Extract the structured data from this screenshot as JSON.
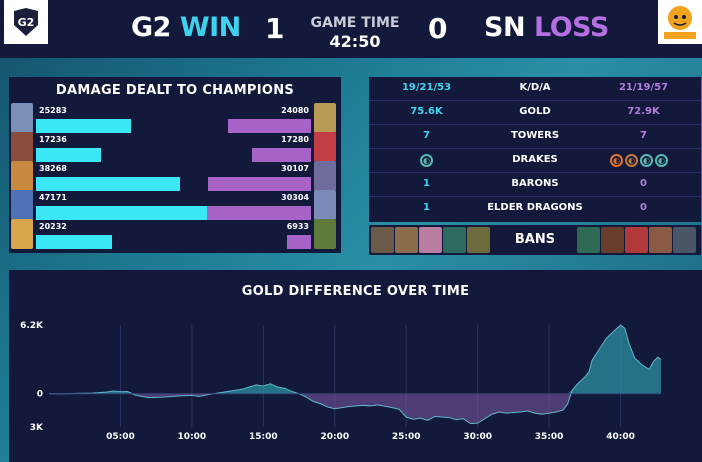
{
  "header": {
    "left_team": {
      "tag": "G2",
      "result": "WIN",
      "score": "1"
    },
    "right_team": {
      "tag": "SN",
      "result": "LOSS",
      "score": "0"
    },
    "game_time_label": "GAME TIME",
    "game_time": "42:50"
  },
  "damage": {
    "title": "DAMAGE DEALT TO CHAMPIONS",
    "max": 50000,
    "rows": [
      {
        "g2": 25283,
        "sn": 24080,
        "g2_color": "#7b90b8",
        "sn_color": "#b99a55"
      },
      {
        "g2": 17236,
        "sn": 17280,
        "g2_color": "#8a4d3d",
        "sn_color": "#c23d45"
      },
      {
        "g2": 38268,
        "sn": 30107,
        "g2_color": "#c98a3f",
        "sn_color": "#6f6d9e"
      },
      {
        "g2": 47171,
        "sn": 30304,
        "g2_color": "#4d72b5",
        "sn_color": "#7a8bb9"
      },
      {
        "g2": 20232,
        "sn": 6933,
        "g2_color": "#d7a74e",
        "sn_color": "#5e7a3d"
      }
    ]
  },
  "stats": {
    "rows": [
      {
        "left": "19/21/53",
        "label": "K/D/A",
        "right": "21/19/57"
      },
      {
        "left": "75.6K",
        "label": "GOLD",
        "right": "72.9K"
      },
      {
        "left": "7",
        "label": "TOWERS",
        "right": "7"
      },
      {
        "left": "",
        "label": "DRAKES",
        "right": ""
      },
      {
        "left": "1",
        "label": "BARONS",
        "right": "0"
      },
      {
        "left": "1",
        "label": "ELDER DRAGONS",
        "right": "0"
      }
    ],
    "drakes_left": [
      {
        "icon": "ocean-drake-icon",
        "color": "#5ab9b0"
      }
    ],
    "drakes_right": [
      {
        "icon": "infernal-drake-icon",
        "color": "#e3732d"
      },
      {
        "icon": "mountain-drake-icon",
        "color": "#c07a3c"
      },
      {
        "icon": "ocean-drake-icon",
        "color": "#5ab9b0"
      },
      {
        "icon": "ocean-drake-icon",
        "color": "#5ab9b0"
      }
    ]
  },
  "bans": {
    "label": "BANS",
    "g2": [
      "#6b5a4a",
      "#8a6d4a",
      "#b87da0",
      "#2d6b5e",
      "#6d6a3e"
    ],
    "sn": [
      "#2f6a55",
      "#6a3d2a",
      "#b03a3a",
      "#8a5a45",
      "#4a5566"
    ]
  },
  "gold_chart": {
    "title": "GOLD DIFFERENCE OVER TIME",
    "y_labels": [
      "6.2K",
      "0",
      "3K"
    ],
    "x_labels": [
      "05:00",
      "10:00",
      "15:00",
      "20:00",
      "25:00",
      "30:00",
      "35:00",
      "40:00"
    ],
    "ymax": 6200,
    "ymin": -3000,
    "xmax": 42.83,
    "positive_color": "#2d97a8",
    "negative_color": "#7f5ba5",
    "series": [
      [
        0,
        0
      ],
      [
        1,
        0
      ],
      [
        2,
        30
      ],
      [
        3,
        50
      ],
      [
        4,
        150
      ],
      [
        4.5,
        250
      ],
      [
        5,
        180
      ],
      [
        5.5,
        200
      ],
      [
        6,
        -100
      ],
      [
        6.5,
        -250
      ],
      [
        7,
        -350
      ],
      [
        8,
        -300
      ],
      [
        9,
        -200
      ],
      [
        10,
        -150
      ],
      [
        10.5,
        -250
      ],
      [
        11,
        -100
      ],
      [
        12,
        100
      ],
      [
        13,
        300
      ],
      [
        13.5,
        400
      ],
      [
        14,
        600
      ],
      [
        14.5,
        800
      ],
      [
        15,
        700
      ],
      [
        15.5,
        900
      ],
      [
        16,
        600
      ],
      [
        16.5,
        500
      ],
      [
        17,
        200
      ],
      [
        17.5,
        0
      ],
      [
        18,
        -300
      ],
      [
        18.5,
        -700
      ],
      [
        19,
        -900
      ],
      [
        19.5,
        -1200
      ],
      [
        20,
        -1350
      ],
      [
        20.5,
        -1250
      ],
      [
        21,
        -1150
      ],
      [
        22,
        -1050
      ],
      [
        22.5,
        -1100
      ],
      [
        23,
        -1000
      ],
      [
        24,
        -1250
      ],
      [
        24.5,
        -1400
      ],
      [
        25,
        -2100
      ],
      [
        25.5,
        -2300
      ],
      [
        26,
        -2200
      ],
      [
        26.5,
        -2400
      ],
      [
        27,
        -2050
      ],
      [
        28,
        -2150
      ],
      [
        28.5,
        -2350
      ],
      [
        29,
        -2250
      ],
      [
        29.5,
        -2700
      ],
      [
        30,
        -2650
      ],
      [
        31,
        -1850
      ],
      [
        31.5,
        -1650
      ],
      [
        32,
        -1750
      ],
      [
        33,
        -1650
      ],
      [
        33.5,
        -1550
      ],
      [
        34,
        -1750
      ],
      [
        34.5,
        -1850
      ],
      [
        35,
        -1750
      ],
      [
        35.5,
        -1650
      ],
      [
        36,
        -1450
      ],
      [
        36.3,
        -900
      ],
      [
        36.6,
        300
      ],
      [
        37,
        900
      ],
      [
        37.5,
        1500
      ],
      [
        37.8,
        2000
      ],
      [
        38,
        3000
      ],
      [
        38.5,
        4000
      ],
      [
        39,
        5000
      ],
      [
        39.5,
        5600
      ],
      [
        40,
        6200
      ],
      [
        40.3,
        5900
      ],
      [
        40.6,
        4500
      ],
      [
        41,
        3200
      ],
      [
        41.5,
        2600
      ],
      [
        42,
        2200
      ],
      [
        42.3,
        2900
      ],
      [
        42.6,
        3300
      ],
      [
        42.83,
        3100
      ]
    ]
  }
}
